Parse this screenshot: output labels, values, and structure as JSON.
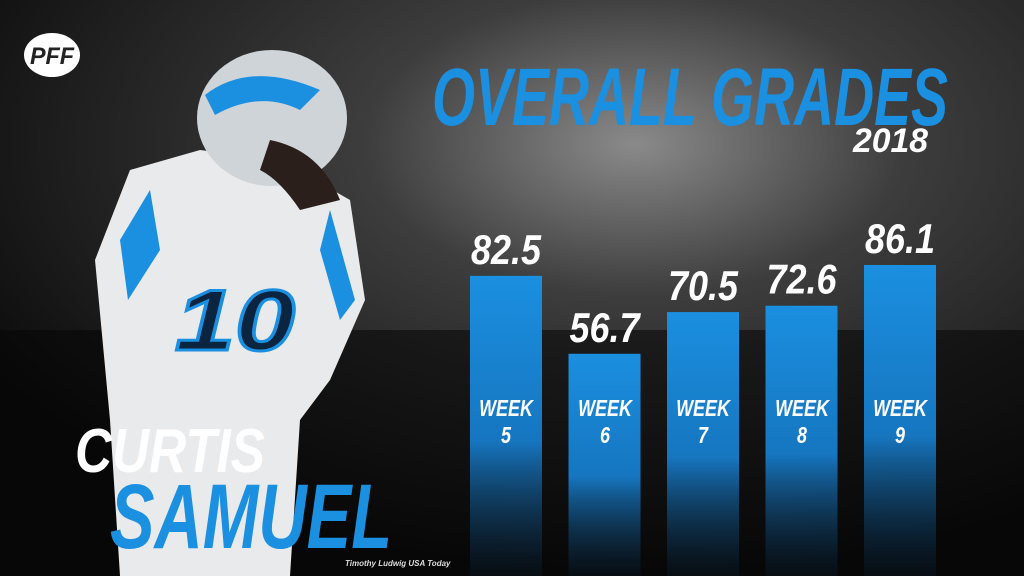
{
  "logo": "PFF",
  "player": {
    "first_name": "CURTIS",
    "last_name": "SAMUEL"
  },
  "photo_credit": "Timothy Ludwig USA Today",
  "chart_data": {
    "type": "bar",
    "title": "OVERALL GRADES",
    "subtitle": "2018",
    "categories": [
      "WEEK 5",
      "WEEK 6",
      "WEEK 7",
      "WEEK 8",
      "WEEK 9"
    ],
    "values": [
      82.5,
      56.7,
      70.5,
      72.6,
      86.1
    ],
    "color": "#1b8fe0",
    "ylim": [
      0,
      100
    ]
  }
}
